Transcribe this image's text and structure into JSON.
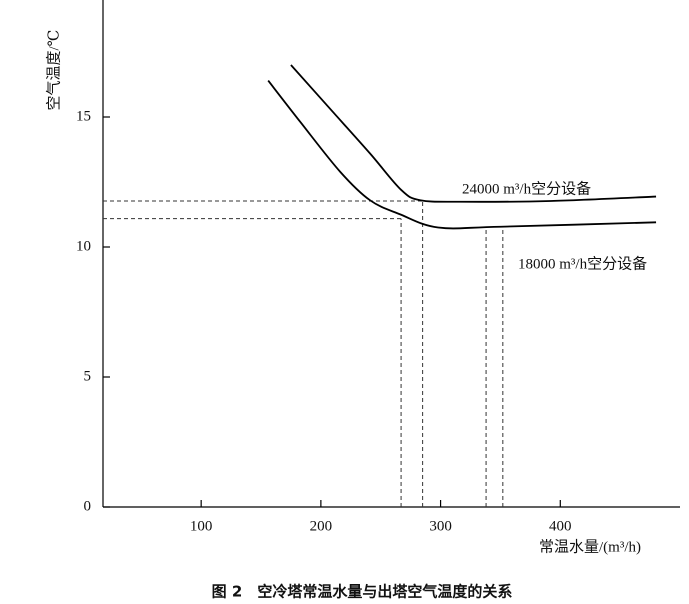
{
  "chart_data": {
    "type": "line",
    "y_label": "空气温度/℃",
    "x_label": "常温水量/(m³/h)",
    "caption": "图 2　空冷塔常温水量与出塔空气温度的关系",
    "xlim": [
      18,
      500
    ],
    "ylim": [
      0,
      19.5
    ],
    "xticks": [
      100,
      200,
      300,
      400
    ],
    "yticks": [
      0,
      5,
      10,
      15
    ],
    "series": [
      {
        "name": "24000 m³/h空分设备",
        "color": "#000000",
        "x": [
          175,
          208,
          241,
          267,
          283,
          317,
          392,
          480
        ],
        "values": [
          17.0,
          15.3,
          13.6,
          12.2,
          11.8,
          11.74,
          11.77,
          11.94
        ]
      },
      {
        "name": "18000 m³/h空分设备",
        "color": "#000000",
        "x": [
          156,
          183,
          216,
          241,
          266,
          298,
          350,
          480
        ],
        "values": [
          16.4,
          14.8,
          12.9,
          11.8,
          11.26,
          10.75,
          10.78,
          10.95
        ]
      }
    ],
    "h_guides": [
      {
        "y": 11.77,
        "x": 285
      },
      {
        "y": 11.09,
        "x": 267
      }
    ],
    "v_guides": [
      {
        "x": 267,
        "y": 11.09
      },
      {
        "x": 285,
        "y": 11.77
      },
      {
        "x": 338,
        "y": 10.78
      },
      {
        "x": 352,
        "y": 10.78
      }
    ]
  }
}
